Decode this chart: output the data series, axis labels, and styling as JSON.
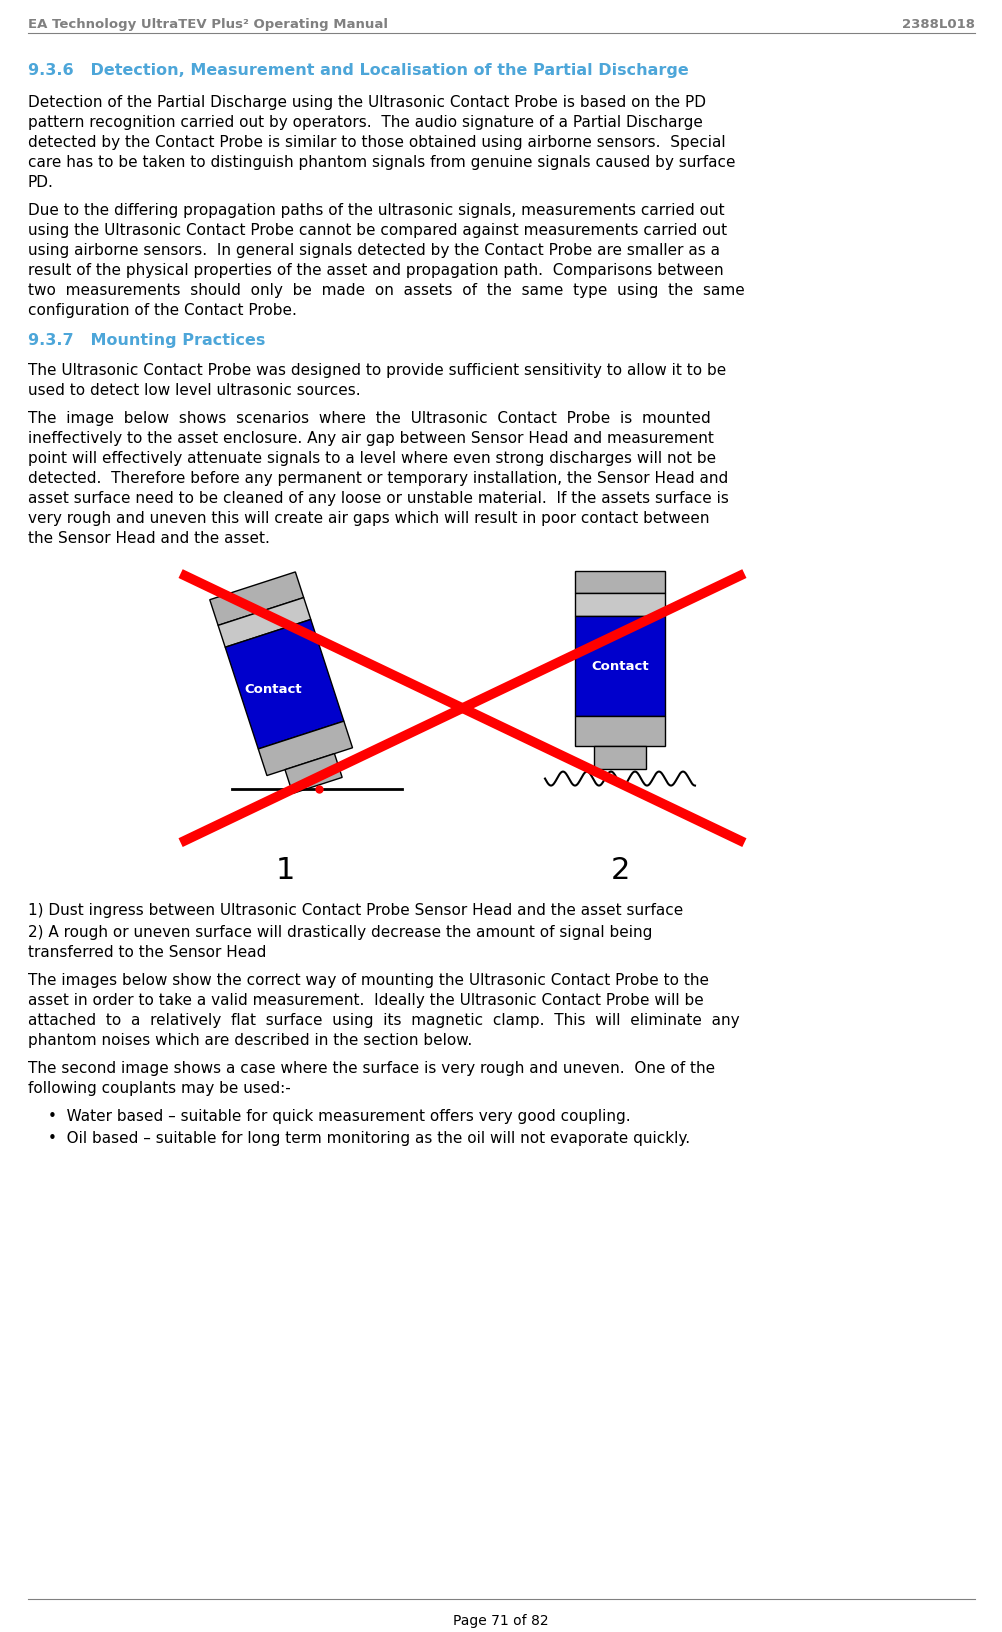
{
  "header_left": "EA Technology UltraTEV Plus² Operating Manual",
  "header_right": "2388L018",
  "footer": "Page 71 of 82",
  "section_936": "9.3.6   Detection, Measurement and Localisation of the Partial Discharge",
  "section_937": "9.3.7   Mounting Practices",
  "para1_lines": [
    "Detection of the Partial Discharge using the Ultrasonic Contact Probe is based on the PD",
    "pattern recognition carried out by operators.  The audio signature of a Partial Discharge",
    "detected by the Contact Probe is similar to those obtained using airborne sensors.  Special",
    "care has to be taken to distinguish phantom signals from genuine signals caused by surface",
    "PD."
  ],
  "para2_lines": [
    "Due to the differing propagation paths of the ultrasonic signals, measurements carried out",
    "using the Ultrasonic Contact Probe cannot be compared against measurements carried out",
    "using airborne sensors.  In general signals detected by the Contact Probe are smaller as a",
    "result of the physical properties of the asset and propagation path.  Comparisons between",
    "two  measurements  should  only  be  made  on  assets  of  the  same  type  using  the  same",
    "configuration of the Contact Probe."
  ],
  "para3_lines": [
    "The Ultrasonic Contact Probe was designed to provide sufficient sensitivity to allow it to be",
    "used to detect low level ultrasonic sources."
  ],
  "para4_lines": [
    "The  image  below  shows  scenarios  where  the  Ultrasonic  Contact  Probe  is  mounted",
    "ineffectively to the asset enclosure. Any air gap between Sensor Head and measurement",
    "point will effectively attenuate signals to a level where even strong discharges will not be",
    "detected.  Therefore before any permanent or temporary installation, the Sensor Head and",
    "asset surface need to be cleaned of any loose or unstable material.  If the assets surface is",
    "very rough and uneven this will create air gaps which will result in poor contact between",
    "the Sensor Head and the asset."
  ],
  "caption1": "1) Dust ingress between Ultrasonic Contact Probe Sensor Head and the asset surface",
  "caption2a": "2) A rough or uneven surface will drastically decrease the amount of signal being",
  "caption2b": "transferred to the Sensor Head",
  "para5_lines": [
    "The images below show the correct way of mounting the Ultrasonic Contact Probe to the",
    "asset in order to take a valid measurement.  Ideally the Ultrasonic Contact Probe will be",
    "attached  to  a  relatively  flat  surface  using  its  magnetic  clamp.  This  will  eliminate  any",
    "phantom noises which are described in the section below."
  ],
  "para6_lines": [
    "The second image shows a case where the surface is very rough and uneven.  One of the",
    "following couplants may be used:-"
  ],
  "bullet1": "Water based – suitable for quick measurement offers very good coupling.",
  "bullet2": "Oil based – suitable for long term monitoring as the oil will not evaporate quickly.",
  "header_color": "#808080",
  "section_color": "#4da6d9",
  "text_color": "#000000",
  "blue_fill": "#0000cc",
  "red_color": "#ff0000",
  "contact_color": "#ffffff"
}
